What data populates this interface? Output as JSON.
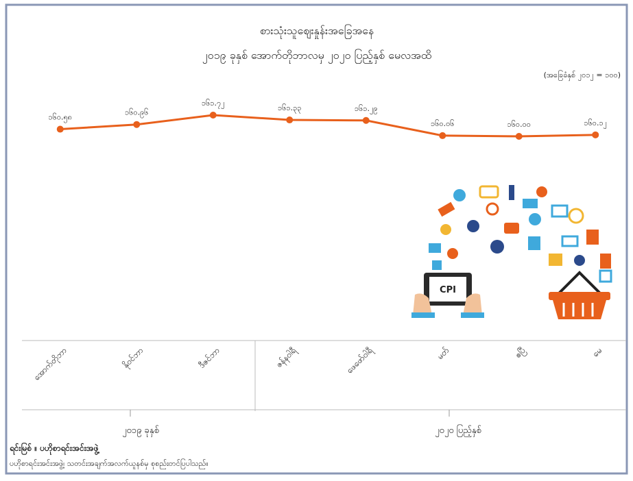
{
  "chart_data": {
    "type": "line",
    "title": "စားသုံးသူဈေးနှုန်းအခြေအနေ",
    "subtitle": "၂၀၁၉ ခုနှစ် အောက်တိုဘာလမှ ၂၀၂၀ ပြည့်နှစ် မေလအထိ",
    "note": "(အခြေခံနှစ် ၂၀၁၂ = ၁၀၀)",
    "categories": [
      "အောက်တိုဘာ",
      "နိုဝင်ဘာ",
      "ဒီဇင်ဘာ",
      "ဇန်နဝါရီ",
      "ဖေဖော်ဝါရီ",
      "မတ်",
      "ဧပြီ",
      "မေ"
    ],
    "groups": [
      {
        "label": "၂၀၁၉ ခုနှစ်"
      },
      {
        "label": "၂၀၂၀ ပြည့်နှစ်"
      }
    ],
    "series": [
      {
        "color": "#e8601c",
        "values": [
          160.58,
          160.96,
          161.72,
          161.33,
          161.29,
          160.06,
          160.0,
          160.12
        ],
        "value_labels": [
          "၁၆၀.၅၈",
          "၁၆၀.၉၆",
          "၁၆၁.၇၂",
          "၁၆၁.၃၃",
          "၁၆၁.၂၉",
          "၁၆၀.၀၆",
          "၁၆၀.၀၀",
          "၁၆၀.၁၂"
        ]
      }
    ],
    "illustration_label": "CPI",
    "source": "ရင်းမြစ် ။ ပဟိုစာရင်းအင်းအဖွဲ့",
    "source_note": "ပဟိုစာရင်းအင်းအဖွဲ့၊ သတင်းအချက်အလက်ယူနစ်မှ စုစည်းတင်ပြပါသည်။"
  }
}
